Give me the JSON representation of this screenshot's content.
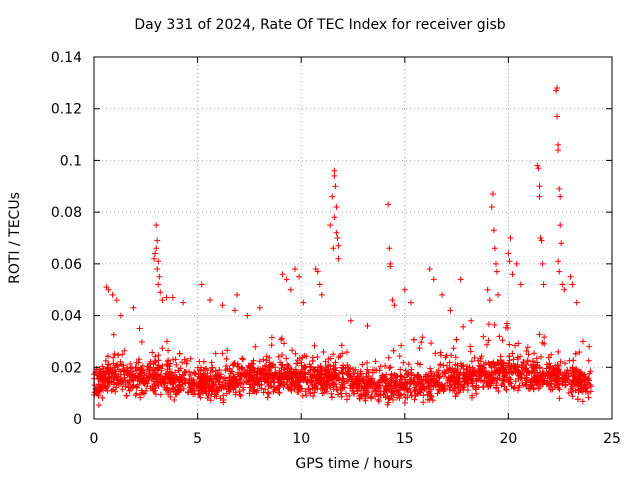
{
  "chart_data": {
    "type": "scatter",
    "title": "Day 331 of 2024, Rate Of TEC Index for receiver gisb",
    "xlabel": "GPS time / hours",
    "ylabel": "ROTI / TECUs",
    "xlim": [
      0,
      25
    ],
    "ylim": [
      0,
      0.14
    ],
    "xticks": [
      0,
      5,
      10,
      15,
      20,
      25
    ],
    "xtick_labels": [
      "0",
      "5",
      "10",
      "15",
      "20",
      "25"
    ],
    "yticks": [
      0,
      0.02,
      0.04,
      0.06,
      0.08,
      0.1,
      0.12,
      0.14
    ],
    "ytick_labels": [
      "0",
      "0.02",
      "0.04",
      "0.06",
      "0.08",
      "0.1",
      "0.12",
      "0.14"
    ],
    "grid": true,
    "marker": "+",
    "color": "#ff0000",
    "series": [
      {
        "name": "ROTI",
        "dense_band": {
          "x_range": [
            0,
            24
          ],
          "baseline_x": [
            0,
            1,
            2,
            3,
            4,
            5,
            6,
            7,
            8,
            9,
            10,
            11,
            12,
            13,
            14,
            15,
            16,
            17,
            18,
            19,
            20,
            21,
            22,
            23,
            24
          ],
          "baseline_median": [
            0.013,
            0.016,
            0.015,
            0.016,
            0.014,
            0.013,
            0.014,
            0.015,
            0.016,
            0.016,
            0.015,
            0.016,
            0.015,
            0.013,
            0.012,
            0.013,
            0.014,
            0.015,
            0.016,
            0.017,
            0.018,
            0.017,
            0.016,
            0.015,
            0.013
          ],
          "upper_envelope": [
            0.025,
            0.035,
            0.03,
            0.04,
            0.03,
            0.025,
            0.03,
            0.03,
            0.032,
            0.035,
            0.03,
            0.035,
            0.03,
            0.025,
            0.025,
            0.035,
            0.035,
            0.035,
            0.035,
            0.04,
            0.04,
            0.04,
            0.035,
            0.03,
            0.025
          ],
          "lower_bound": 0.004,
          "approx_points": 2600
        },
        "points": [
          [
            0.6,
            0.051
          ],
          [
            0.7,
            0.05
          ],
          [
            0.9,
            0.048
          ],
          [
            1.1,
            0.046
          ],
          [
            1.3,
            0.04
          ],
          [
            1.9,
            0.043
          ],
          [
            2.2,
            0.035
          ],
          [
            2.9,
            0.062
          ],
          [
            2.95,
            0.064
          ],
          [
            3.0,
            0.066
          ],
          [
            3.0,
            0.075
          ],
          [
            3.05,
            0.069
          ],
          [
            3.05,
            0.058
          ],
          [
            3.1,
            0.061
          ],
          [
            3.1,
            0.052
          ],
          [
            3.15,
            0.055
          ],
          [
            3.2,
            0.049
          ],
          [
            3.3,
            0.046
          ],
          [
            3.5,
            0.047
          ],
          [
            3.8,
            0.047
          ],
          [
            4.3,
            0.045
          ],
          [
            5.2,
            0.052
          ],
          [
            5.6,
            0.046
          ],
          [
            6.2,
            0.044
          ],
          [
            6.8,
            0.042
          ],
          [
            6.9,
            0.048
          ],
          [
            7.4,
            0.04
          ],
          [
            8.0,
            0.043
          ],
          [
            9.1,
            0.056
          ],
          [
            9.3,
            0.054
          ],
          [
            9.5,
            0.05
          ],
          [
            9.7,
            0.058
          ],
          [
            9.9,
            0.055
          ],
          [
            10.1,
            0.045
          ],
          [
            10.7,
            0.058
          ],
          [
            10.8,
            0.057
          ],
          [
            10.9,
            0.052
          ],
          [
            11.0,
            0.048
          ],
          [
            11.4,
            0.075
          ],
          [
            11.5,
            0.086
          ],
          [
            11.6,
            0.094
          ],
          [
            11.6,
            0.096
          ],
          [
            11.65,
            0.09
          ],
          [
            11.7,
            0.082
          ],
          [
            11.7,
            0.072
          ],
          [
            11.75,
            0.07
          ],
          [
            11.8,
            0.067
          ],
          [
            11.8,
            0.062
          ],
          [
            11.6,
            0.078
          ],
          [
            11.55,
            0.066
          ],
          [
            12.4,
            0.038
          ],
          [
            13.2,
            0.036
          ],
          [
            14.2,
            0.083
          ],
          [
            14.25,
            0.066
          ],
          [
            14.3,
            0.06
          ],
          [
            14.3,
            0.059
          ],
          [
            14.4,
            0.046
          ],
          [
            14.5,
            0.044
          ],
          [
            15.0,
            0.05
          ],
          [
            15.3,
            0.045
          ],
          [
            16.2,
            0.058
          ],
          [
            16.4,
            0.054
          ],
          [
            16.8,
            0.048
          ],
          [
            17.2,
            0.042
          ],
          [
            17.7,
            0.054
          ],
          [
            18.2,
            0.038
          ],
          [
            19.0,
            0.05
          ],
          [
            19.2,
            0.082
          ],
          [
            19.25,
            0.087
          ],
          [
            19.3,
            0.073
          ],
          [
            19.35,
            0.066
          ],
          [
            19.4,
            0.06
          ],
          [
            19.45,
            0.057
          ],
          [
            19.5,
            0.048
          ],
          [
            19.1,
            0.046
          ],
          [
            20.0,
            0.064
          ],
          [
            20.05,
            0.061
          ],
          [
            20.1,
            0.07
          ],
          [
            20.2,
            0.056
          ],
          [
            20.4,
            0.06
          ],
          [
            20.6,
            0.052
          ],
          [
            21.4,
            0.098
          ],
          [
            21.45,
            0.097
          ],
          [
            21.5,
            0.09
          ],
          [
            21.5,
            0.086
          ],
          [
            21.55,
            0.07
          ],
          [
            21.6,
            0.069
          ],
          [
            21.65,
            0.06
          ],
          [
            21.7,
            0.052
          ],
          [
            22.3,
            0.127
          ],
          [
            22.35,
            0.128
          ],
          [
            22.35,
            0.117
          ],
          [
            22.4,
            0.106
          ],
          [
            22.4,
            0.104
          ],
          [
            22.45,
            0.089
          ],
          [
            22.5,
            0.086
          ],
          [
            22.5,
            0.075
          ],
          [
            22.55,
            0.068
          ],
          [
            22.4,
            0.061
          ],
          [
            22.45,
            0.057
          ],
          [
            22.6,
            0.052
          ],
          [
            22.7,
            0.05
          ],
          [
            23.0,
            0.055
          ],
          [
            23.1,
            0.052
          ],
          [
            23.3,
            0.045
          ],
          [
            23.6,
            0.03
          ],
          [
            23.9,
            0.028
          ]
        ]
      }
    ]
  }
}
